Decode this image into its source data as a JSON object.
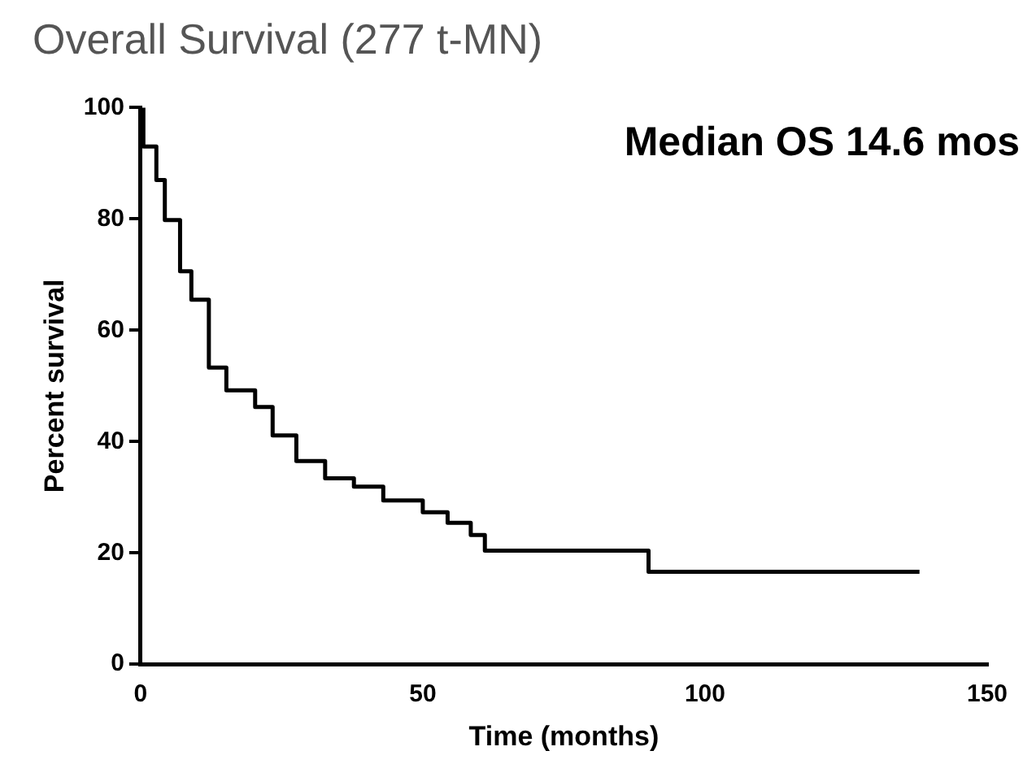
{
  "chart_data": {
    "type": "step",
    "title": "Overall Survival (277 t-MN)",
    "xlabel": "Time (months)",
    "ylabel": "Percent survival",
    "annotations": [
      "Median OS 14.6 mos"
    ],
    "x": [
      0,
      0.5,
      2.8,
      4.3,
      7,
      9,
      12.1,
      15.2,
      20.3,
      23.4,
      27.6,
      32.7,
      37.8,
      43,
      50,
      54.4,
      58.5,
      61,
      90,
      138
    ],
    "series": [
      {
        "color": "#000000",
        "values": [
          100,
          93,
          87,
          79.8,
          70.6,
          65.5,
          53.3,
          49.2,
          46.2,
          41.1,
          36.5,
          33.4,
          31.9,
          29.4,
          27.3,
          25.4,
          23.2,
          20.4,
          16.6,
          16.6
        ]
      }
    ],
    "xlim": [
      0,
      150
    ],
    "xticks": [
      0,
      50,
      100,
      150
    ],
    "ylim": [
      0,
      100
    ],
    "yticks": [
      0,
      20,
      40,
      60,
      80,
      100
    ],
    "grid": false,
    "legend": false
  }
}
